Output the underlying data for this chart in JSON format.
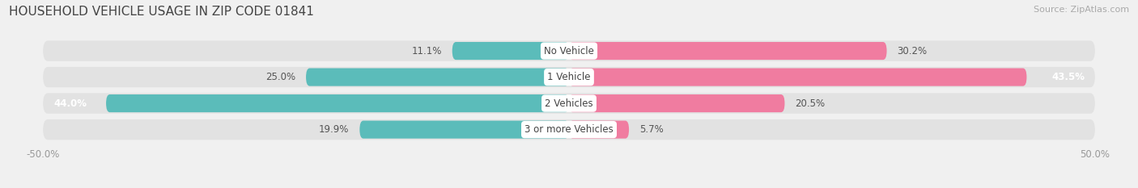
{
  "title": "HOUSEHOLD VEHICLE USAGE IN ZIP CODE 01841",
  "source": "Source: ZipAtlas.com",
  "categories": [
    "No Vehicle",
    "1 Vehicle",
    "2 Vehicles",
    "3 or more Vehicles"
  ],
  "owner_values": [
    11.1,
    25.0,
    44.0,
    19.9
  ],
  "renter_values": [
    30.2,
    43.5,
    20.5,
    5.7
  ],
  "owner_color": "#5bbcba",
  "renter_color": "#f07ca0",
  "axis_min": -50.0,
  "axis_max": 50.0,
  "bar_height": 0.68,
  "bg_color": "#f0f0f0",
  "bar_bg_color": "#e2e2e2",
  "row_bg_color": "#e8e8e8",
  "title_fontsize": 11,
  "source_fontsize": 8,
  "label_fontsize": 8.5,
  "value_fontsize": 8.5,
  "tick_fontsize": 8.5,
  "label_color": "#555555",
  "owner_text_color": "white",
  "renter_text_color": "white"
}
